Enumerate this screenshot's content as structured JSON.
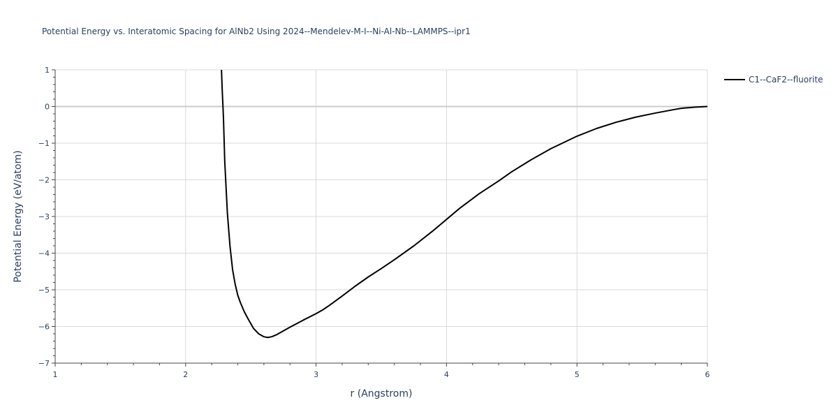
{
  "chart_data": {
    "type": "line",
    "title": "Potential Energy vs. Interatomic Spacing for AlNb2 Using 2024--Mendelev-M-I--Ni-Al-Nb--LAMMPS--ipr1",
    "xlabel": "r (Angstrom)",
    "ylabel": "Potential Energy (eV/atom)",
    "xlim": [
      1,
      6
    ],
    "ylim": [
      -7,
      1
    ],
    "xticks": [
      1,
      2,
      3,
      4,
      5,
      6
    ],
    "yticks": [
      1,
      0,
      -1,
      -2,
      -3,
      -4,
      -5,
      -6,
      -7
    ],
    "xtick_labels": [
      "1",
      "2",
      "3",
      "4",
      "5",
      "6"
    ],
    "ytick_labels": [
      "1",
      "0",
      "−1",
      "−2",
      "−3",
      "−4",
      "−5",
      "−6",
      "−7"
    ],
    "grid": true,
    "legend_position": "top-right",
    "series": [
      {
        "name": "C1--CaF2--fluorite",
        "color": "#000000",
        "x": [
          2.275,
          2.28,
          2.29,
          2.3,
          2.32,
          2.34,
          2.36,
          2.38,
          2.4,
          2.42,
          2.45,
          2.48,
          2.52,
          2.56,
          2.6,
          2.63,
          2.66,
          2.7,
          2.75,
          2.8,
          2.9,
          3.0,
          3.05,
          3.1,
          3.2,
          3.3,
          3.4,
          3.5,
          3.6,
          3.75,
          3.9,
          4.0,
          4.1,
          4.25,
          4.4,
          4.5,
          4.65,
          4.8,
          5.0,
          5.15,
          5.3,
          5.45,
          5.6,
          5.75,
          5.8,
          5.9,
          6.0
        ],
        "y": [
          1.0,
          0.5,
          -0.3,
          -1.5,
          -2.9,
          -3.8,
          -4.45,
          -4.85,
          -5.15,
          -5.35,
          -5.6,
          -5.8,
          -6.05,
          -6.2,
          -6.28,
          -6.3,
          -6.28,
          -6.22,
          -6.12,
          -6.02,
          -5.83,
          -5.65,
          -5.55,
          -5.43,
          -5.17,
          -4.9,
          -4.65,
          -4.42,
          -4.18,
          -3.8,
          -3.38,
          -3.08,
          -2.78,
          -2.38,
          -2.03,
          -1.78,
          -1.45,
          -1.15,
          -0.81,
          -0.6,
          -0.43,
          -0.29,
          -0.18,
          -0.08,
          -0.05,
          -0.02,
          0.0
        ]
      }
    ]
  }
}
